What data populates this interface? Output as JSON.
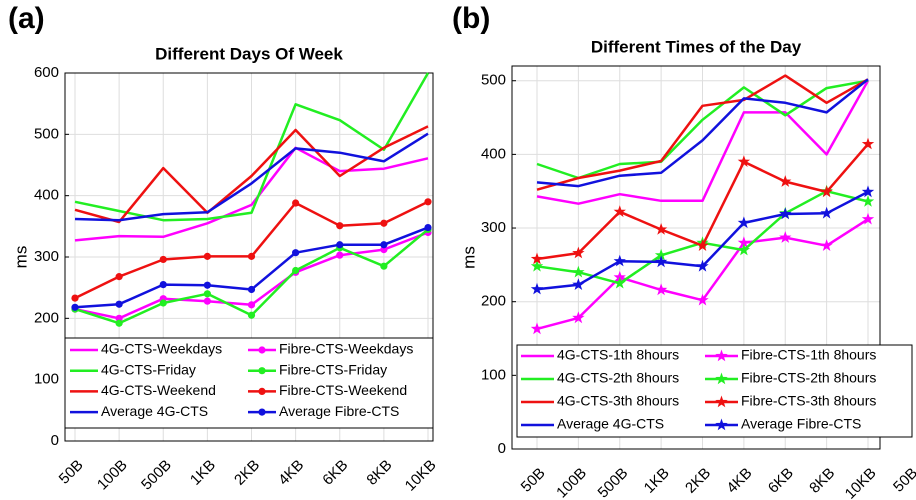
{
  "chart_data": [
    {
      "type": "line",
      "panel": "(a)",
      "title": "Different Days Of Week",
      "y_label": "ms",
      "categories": [
        "50B",
        "100B",
        "500B",
        "1KB",
        "2KB",
        "4KB",
        "6KB",
        "8KB",
        "10KB"
      ],
      "ylim": [
        0,
        600
      ],
      "yticks": [
        0,
        100,
        200,
        300,
        400,
        500,
        600
      ],
      "grid": true,
      "legend": "bottom",
      "series": [
        {
          "name": "4G-CTS-Weekdays",
          "color": "#ff00ff",
          "marker": "none",
          "values": [
            327,
            334,
            333,
            355,
            385,
            478,
            440,
            444,
            461
          ]
        },
        {
          "name": "Fibre-CTS-Weekdays",
          "color": "#ff00ff",
          "marker": "circle",
          "values": [
            215,
            200,
            232,
            228,
            222,
            275,
            303,
            312,
            340
          ]
        },
        {
          "name": "4G-CTS-Friday",
          "color": "#22ee22",
          "marker": "none",
          "values": [
            390,
            375,
            360,
            362,
            372,
            549,
            523,
            475,
            600
          ]
        },
        {
          "name": "Fibre-CTS-Friday",
          "color": "#22ee22",
          "marker": "circle",
          "values": [
            215,
            192,
            225,
            240,
            205,
            278,
            315,
            285,
            345
          ]
        },
        {
          "name": "4G-CTS-Weekend",
          "color": "#ee1111",
          "marker": "none",
          "values": [
            377,
            357,
            445,
            372,
            432,
            507,
            432,
            478,
            513
          ]
        },
        {
          "name": "Fibre-CTS-Weekend",
          "color": "#ee1111",
          "marker": "circle",
          "values": [
            233,
            268,
            296,
            301,
            301,
            388,
            351,
            355,
            390
          ]
        },
        {
          "name": "Average 4G-CTS",
          "color": "#1111dd",
          "marker": "none",
          "values": [
            362,
            360,
            370,
            373,
            420,
            477,
            470,
            456,
            501
          ]
        },
        {
          "name": "Average Fibre-CTS",
          "color": "#1111dd",
          "marker": "circle",
          "values": [
            218,
            223,
            255,
            254,
            247,
            307,
            320,
            320,
            348
          ]
        }
      ]
    },
    {
      "type": "line",
      "panel": "(b)",
      "title": "Different Times of the Day",
      "y_label": "ms",
      "categories": [
        "50B",
        "100B",
        "500B",
        "1KB",
        "2KB",
        "4KB",
        "6KB",
        "8KB",
        "10KB",
        "50B"
      ],
      "ylim": [
        0,
        520
      ],
      "yticks": [
        0,
        100,
        200,
        300,
        400,
        500
      ],
      "grid": true,
      "legend": "bottom",
      "series": [
        {
          "name": "4G-CTS-1th 8hours",
          "color": "#ff00ff",
          "marker": "none",
          "values": [
            343,
            333,
            346,
            337,
            337,
            457,
            457,
            400,
            500,
            null
          ]
        },
        {
          "name": "Fibre-CTS-1th 8hours",
          "color": "#ff00ff",
          "marker": "star",
          "values": [
            163,
            178,
            233,
            216,
            202,
            280,
            287,
            276,
            312,
            null
          ]
        },
        {
          "name": "4G-CTS-2th 8hours",
          "color": "#22ee22",
          "marker": "none",
          "values": [
            387,
            368,
            387,
            390,
            447,
            491,
            453,
            490,
            500,
            null
          ]
        },
        {
          "name": "Fibre-CTS-2th 8hours",
          "color": "#22ee22",
          "marker": "star",
          "values": [
            248,
            240,
            225,
            263,
            280,
            270,
            320,
            350,
            336,
            null
          ]
        },
        {
          "name": "4G-CTS-3th 8hours",
          "color": "#ee1111",
          "marker": "none",
          "values": [
            352,
            368,
            378,
            391,
            466,
            474,
            507,
            470,
            502,
            null
          ]
        },
        {
          "name": "Fibre-CTS-3th 8hours",
          "color": "#ee1111",
          "marker": "star",
          "values": [
            258,
            266,
            322,
            298,
            276,
            390,
            363,
            349,
            414,
            null
          ]
        },
        {
          "name": "Average 4G-CTS",
          "color": "#1111dd",
          "marker": "none",
          "values": [
            362,
            357,
            371,
            375,
            419,
            476,
            470,
            457,
            502,
            null
          ]
        },
        {
          "name": "Average Fibre-CTS",
          "color": "#1111dd",
          "marker": "star",
          "values": [
            217,
            223,
            255,
            254,
            248,
            307,
            319,
            320,
            349,
            null
          ]
        }
      ]
    }
  ]
}
